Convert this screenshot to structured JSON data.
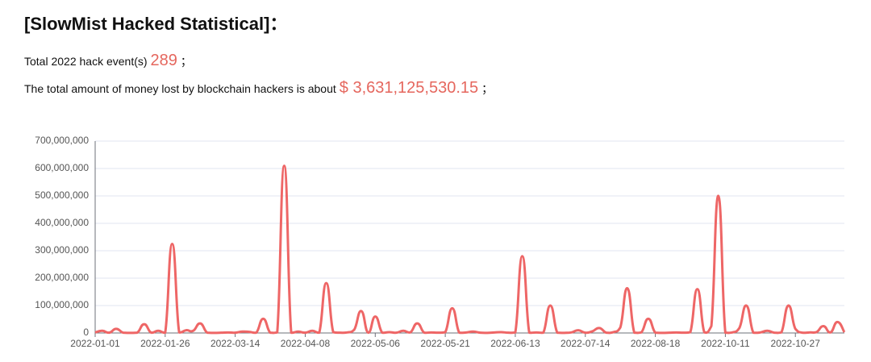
{
  "header": {
    "title": "[SlowMist Hacked Statistical]：",
    "events_text": "Total 2022 hack event(s)",
    "events_value": "289",
    "events_end": "；",
    "amount_text": "The total amount of money lost by blockchain hackers is about",
    "amount_value": "$ 3,631,125,530.15",
    "amount_end": "；"
  },
  "chart_data": {
    "type": "line",
    "color": "#ee6666",
    "grid": true,
    "ylim": [
      0,
      700000000
    ],
    "yticks": [
      {
        "value": 0,
        "label": "0"
      },
      {
        "value": 100000000,
        "label": "100,000,000"
      },
      {
        "value": 200000000,
        "label": "200,000,000"
      },
      {
        "value": 300000000,
        "label": "300,000,000"
      },
      {
        "value": 400000000,
        "label": "400,000,000"
      },
      {
        "value": 500000000,
        "label": "500,000,000"
      },
      {
        "value": 600000000,
        "label": "600,000,000"
      },
      {
        "value": 700000000,
        "label": "700,000,000"
      }
    ],
    "categories": [
      "2022-01-01",
      null,
      null,
      null,
      null,
      null,
      null,
      null,
      null,
      null,
      "2022-01-26",
      null,
      null,
      null,
      null,
      null,
      null,
      null,
      null,
      null,
      "2022-03-14",
      null,
      null,
      null,
      null,
      null,
      null,
      null,
      null,
      null,
      "2022-04-08",
      null,
      null,
      null,
      null,
      null,
      null,
      null,
      null,
      null,
      "2022-05-06",
      null,
      null,
      null,
      null,
      null,
      null,
      null,
      null,
      null,
      "2022-05-21",
      null,
      null,
      null,
      null,
      null,
      null,
      null,
      null,
      null,
      "2022-06-13",
      null,
      null,
      null,
      null,
      null,
      null,
      null,
      null,
      null,
      "2022-07-14",
      null,
      null,
      null,
      null,
      null,
      null,
      null,
      null,
      null,
      "2022-08-18",
      null,
      null,
      null,
      null,
      null,
      null,
      null,
      null,
      null,
      "2022-10-11",
      null,
      null,
      null,
      null,
      null,
      null,
      null,
      null,
      null,
      "2022-10-27",
      null,
      null,
      null,
      null,
      null,
      null,
      null
    ],
    "values": [
      2000000,
      8000000,
      1000000,
      15000000,
      1000000,
      500000,
      1000000,
      32000000,
      1000000,
      8000000,
      1000000,
      325000000,
      2000000,
      10000000,
      8000000,
      35000000,
      1000000,
      500000,
      1000000,
      2000000,
      1000000,
      5000000,
      4000000,
      1000000,
      52000000,
      1000000,
      2000000,
      610000000,
      1000000,
      5000000,
      1000000,
      8000000,
      1000000,
      182000000,
      3000000,
      1000000,
      2000000,
      12000000,
      80000000,
      1000000,
      60000000,
      1000000,
      3000000,
      1000000,
      8000000,
      2000000,
      35000000,
      1000000,
      2000000,
      1000000,
      3000000,
      90000000,
      1000000,
      2000000,
      5000000,
      1000000,
      500000,
      2000000,
      3000000,
      1000000,
      2000000,
      280000000,
      1000000,
      2000000,
      1000000,
      100000000,
      1000000,
      500000,
      2000000,
      10000000,
      1000000,
      6000000,
      18000000,
      1000000,
      3000000,
      20000000,
      163000000,
      1000000,
      2000000,
      52000000,
      1000000,
      500000,
      1000000,
      2000000,
      1000000,
      3000000,
      160000000,
      2000000,
      25000000,
      500000000,
      1000000,
      2000000,
      18000000,
      100000000,
      1000000,
      2000000,
      8000000,
      1000000,
      2000000,
      100000000,
      15000000,
      1000000,
      2000000,
      3000000,
      25000000,
      2000000,
      40000000,
      3000000
    ]
  }
}
